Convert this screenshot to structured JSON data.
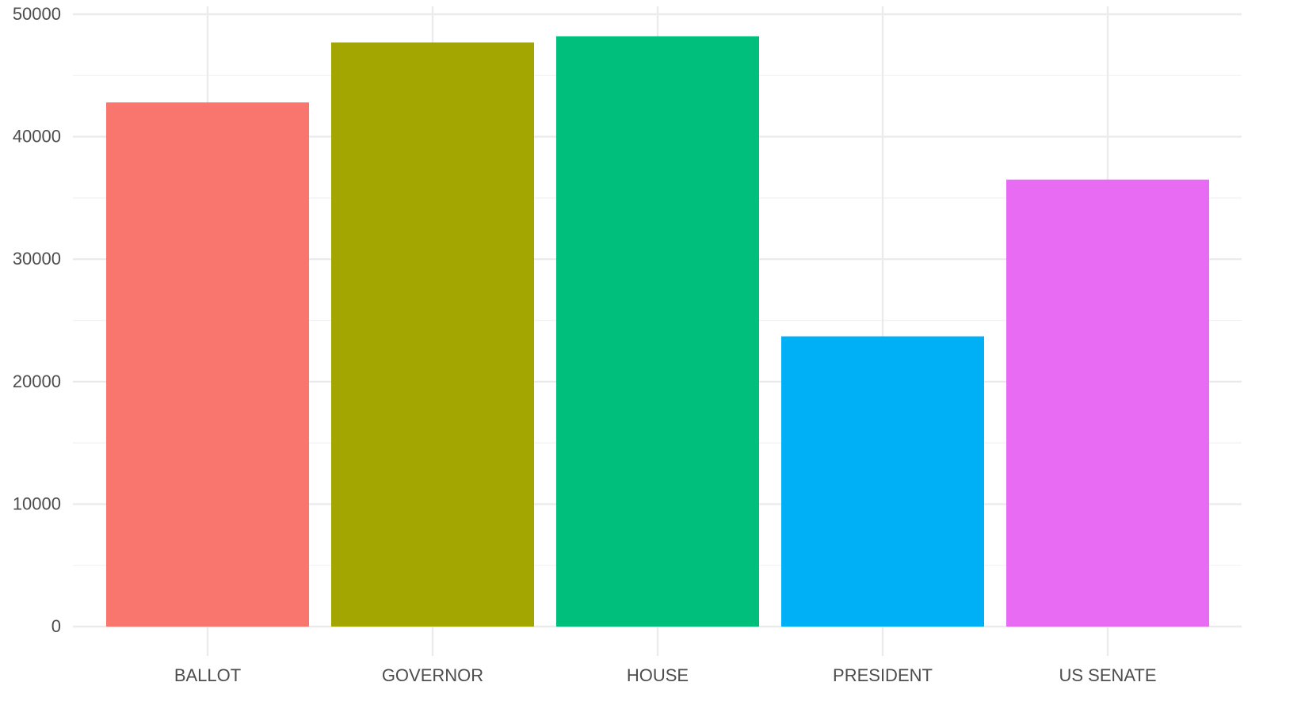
{
  "chart_data": {
    "type": "bar",
    "title": "",
    "xlabel": "",
    "ylabel": "",
    "categories": [
      "BALLOT",
      "GOVERNOR",
      "HOUSE",
      "PRESIDENT",
      "US SENATE"
    ],
    "values": [
      42800,
      47700,
      48200,
      23700,
      36500
    ],
    "colors": [
      "#F8766D",
      "#A3A500",
      "#00BF7D",
      "#00B0F6",
      "#E76BF3"
    ],
    "ylim": [
      0,
      50000
    ],
    "yticks": [
      0,
      10000,
      20000,
      30000,
      40000,
      50000
    ],
    "ytick_labels": [
      "0",
      "10000",
      "20000",
      "30000",
      "40000",
      "50000"
    ],
    "grid": true,
    "legend": "none"
  }
}
